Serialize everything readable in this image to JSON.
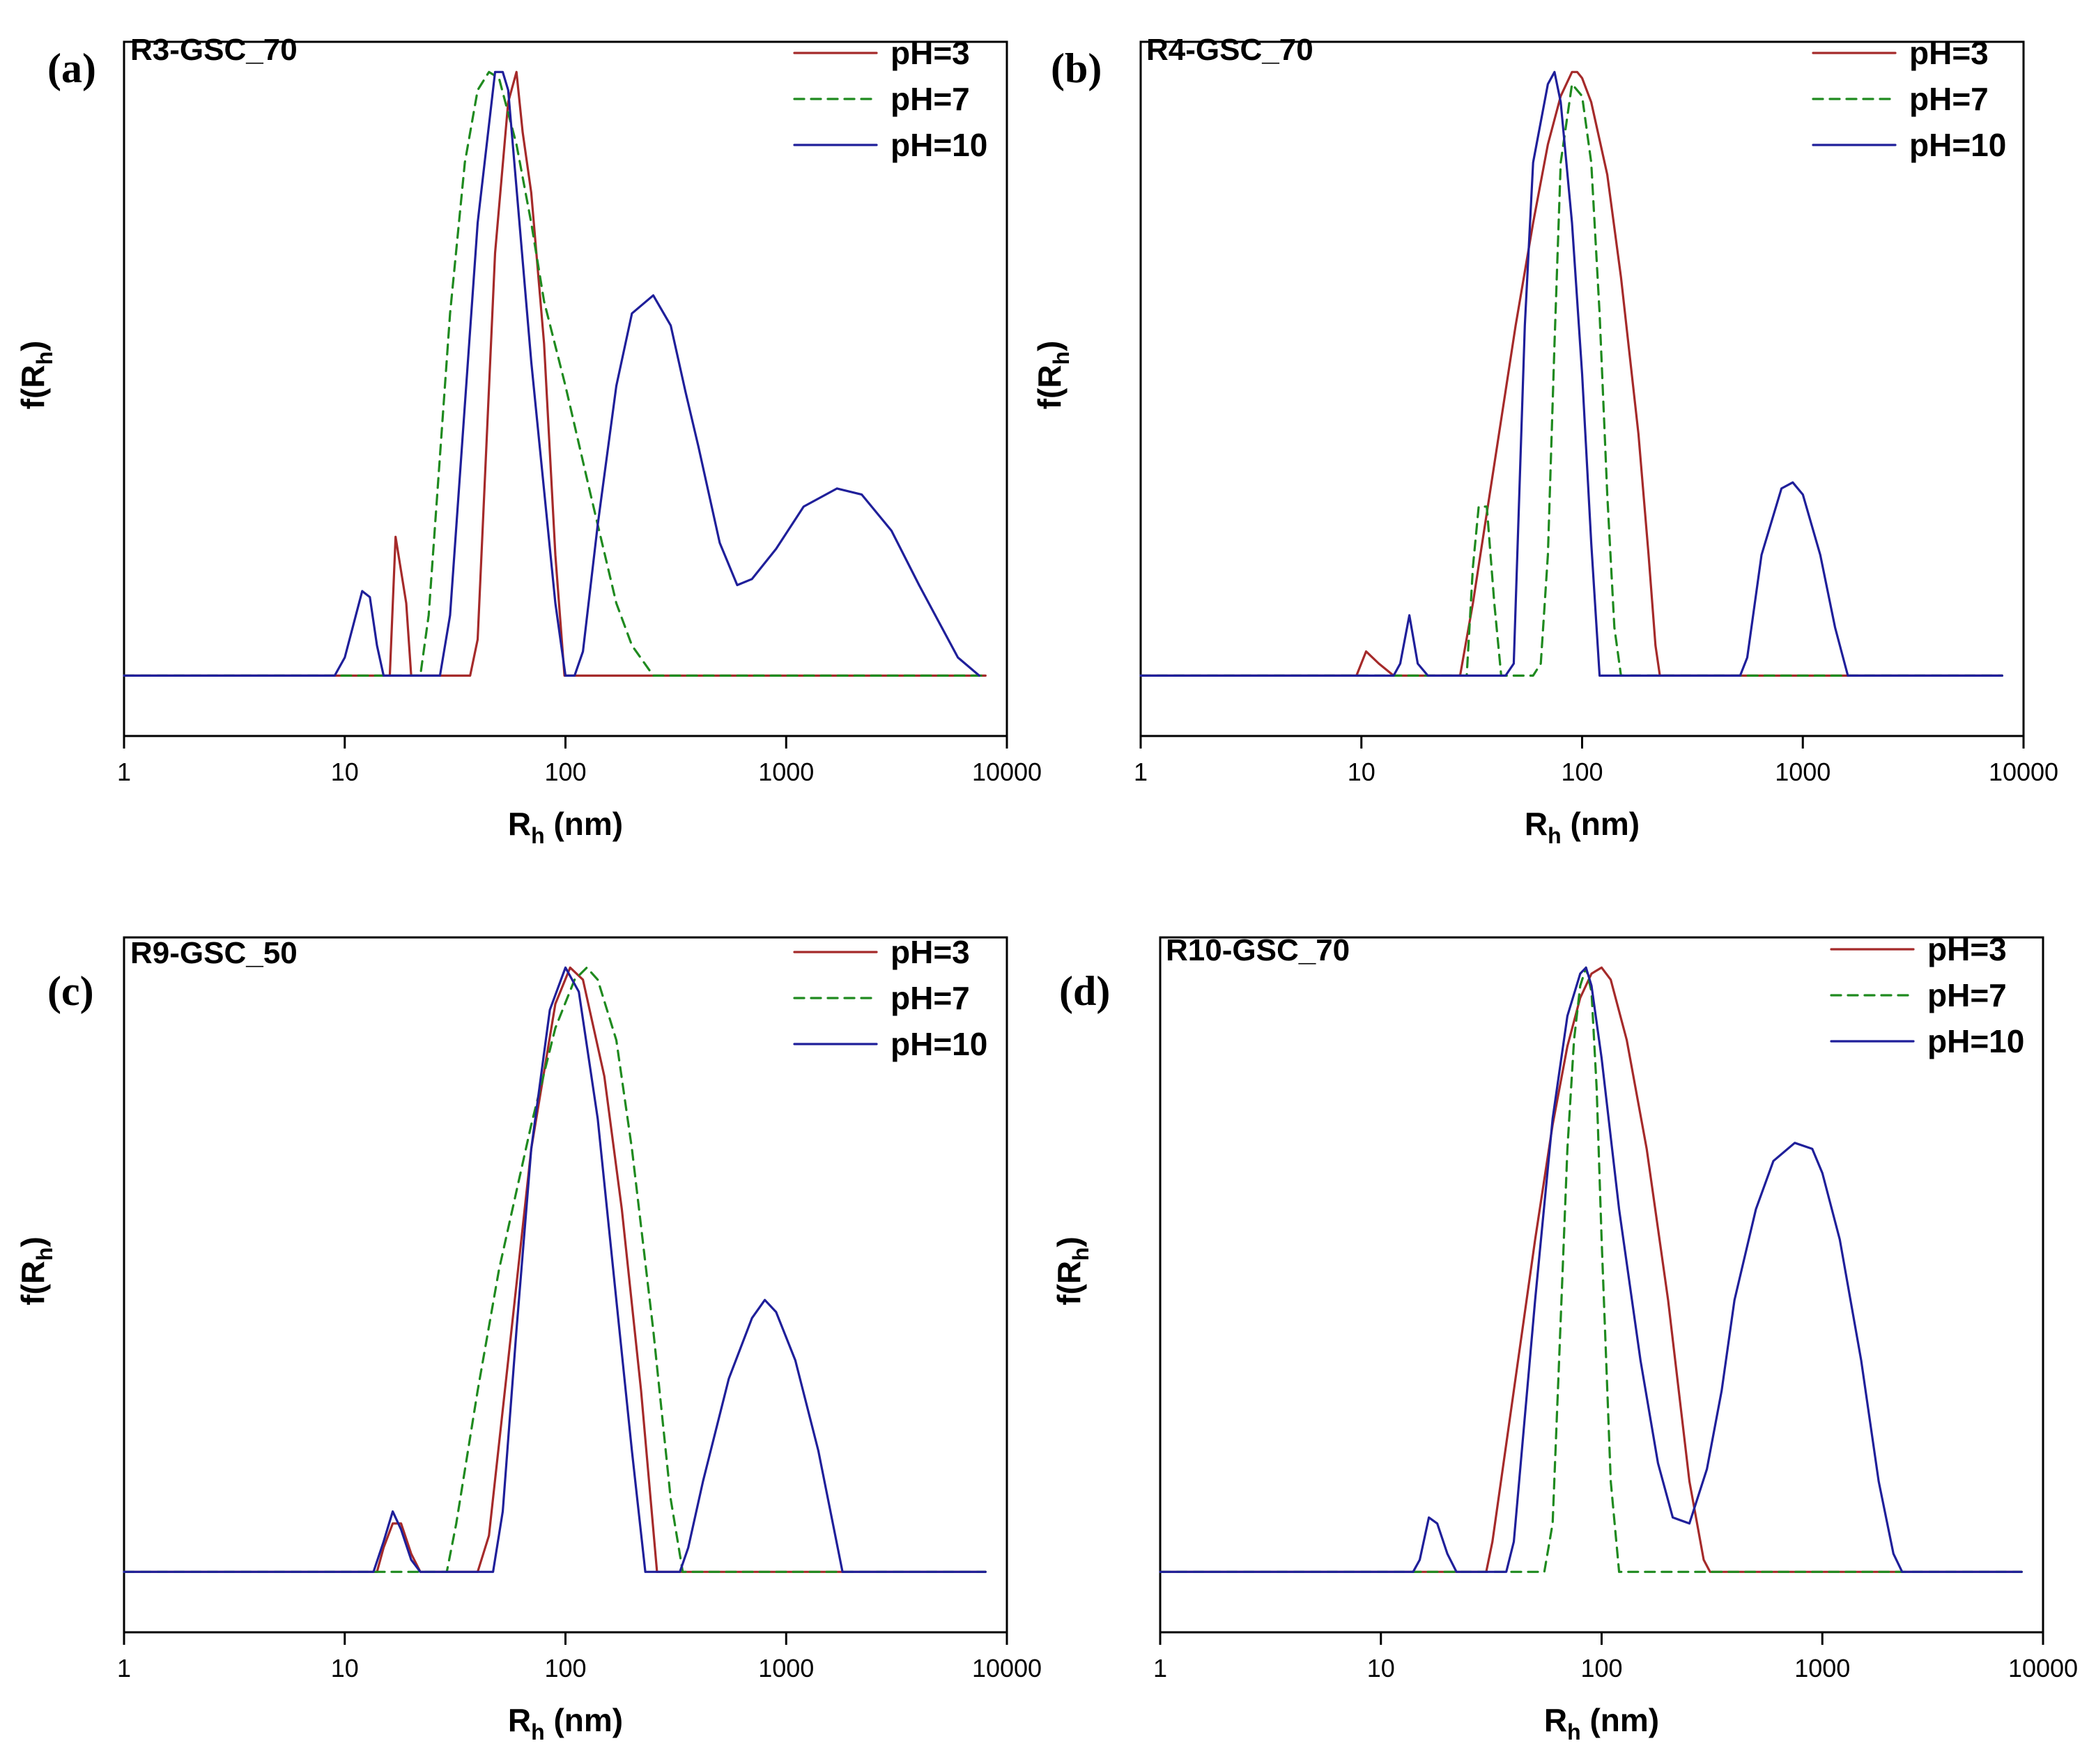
{
  "figure": {
    "colors": {
      "pH=3": "#a52a2a",
      "pH=7": "#1f8a1f",
      "pH=10": "#1f1f9a"
    }
  },
  "chart_data": [
    {
      "type": "line",
      "panel": "(a)",
      "title": "R3-GSC_70",
      "xlabel": "R_h (nm)",
      "ylabel": "f(R_h)",
      "xscale": "log",
      "xlim": [
        1,
        10000
      ],
      "ylim": [
        -0.1,
        1.05
      ],
      "xticks": [
        "1",
        "10",
        "100",
        "1000",
        "10000"
      ],
      "legend": {
        "position": "top-right",
        "entries": [
          "pH=3",
          "pH=7",
          "pH=10"
        ]
      },
      "series": [
        {
          "name": "pH=3",
          "style": "solid",
          "x": [
            1,
            16,
            17,
            19,
            20,
            37,
            40,
            48,
            55,
            60,
            64,
            70,
            80,
            90,
            99,
            105,
            8000
          ],
          "y": [
            0,
            0,
            0.23,
            0.12,
            0,
            0,
            0.06,
            0.7,
            0.95,
            1.0,
            0.9,
            0.8,
            0.55,
            0.2,
            0,
            0,
            0
          ]
        },
        {
          "name": "pH=7",
          "style": "dashed",
          "x": [
            1,
            22,
            24,
            30,
            35,
            40,
            45,
            50,
            60,
            70,
            80,
            100,
            130,
            170,
            200,
            250,
            8000
          ],
          "y": [
            0,
            0,
            0.1,
            0.6,
            0.85,
            0.97,
            1.0,
            0.99,
            0.88,
            0.75,
            0.62,
            0.48,
            0.3,
            0.12,
            0.05,
            0,
            0
          ]
        },
        {
          "name": "pH=10",
          "style": "solid",
          "x": [
            1,
            9,
            10,
            12,
            13,
            14,
            15,
            27,
            30,
            40,
            48,
            52,
            55,
            70,
            90,
            100,
            110,
            120,
            140,
            170,
            200,
            250,
            300,
            350,
            400,
            500,
            600,
            700,
            900,
            1200,
            1700,
            2200,
            3000,
            4000,
            6000,
            7500
          ],
          "y": [
            0,
            0,
            0.03,
            0.14,
            0.13,
            0.05,
            0,
            0,
            0.1,
            0.75,
            1.0,
            1.0,
            0.97,
            0.52,
            0.12,
            0,
            0,
            0.04,
            0.25,
            0.48,
            0.6,
            0.63,
            0.58,
            0.47,
            0.38,
            0.22,
            0.15,
            0.16,
            0.21,
            0.28,
            0.31,
            0.3,
            0.24,
            0.15,
            0.03,
            0
          ]
        }
      ]
    },
    {
      "type": "line",
      "panel": "(b)",
      "title": "R4-GSC_70",
      "xlabel": "R_h (nm)",
      "ylabel": "f(R_h)",
      "xscale": "log",
      "xlim": [
        1,
        10000
      ],
      "ylim": [
        -0.1,
        1.05
      ],
      "xticks": [
        "1",
        "10",
        "100",
        "1000",
        "10000"
      ],
      "legend": {
        "position": "top-right",
        "entries": [
          "pH=3",
          "pH=7",
          "pH=10"
        ]
      },
      "series": [
        {
          "name": "pH=3",
          "style": "solid",
          "x": [
            1,
            9.5,
            10.5,
            12,
            14,
            28,
            32,
            40,
            50,
            60,
            70,
            80,
            90,
            95,
            100,
            110,
            130,
            150,
            180,
            200,
            215,
            225,
            8000
          ],
          "y": [
            0,
            0,
            0.04,
            0.02,
            0,
            0,
            0.12,
            0.35,
            0.58,
            0.75,
            0.88,
            0.96,
            1.0,
            1.0,
            0.99,
            0.95,
            0.83,
            0.66,
            0.4,
            0.2,
            0.05,
            0,
            0
          ]
        },
        {
          "name": "pH=7",
          "style": "dashed",
          "x": [
            1,
            30,
            32,
            34,
            37,
            40,
            43,
            60,
            65,
            70,
            75,
            80,
            90,
            100,
            110,
            120,
            130,
            140,
            150,
            8000
          ],
          "y": [
            0,
            0,
            0.18,
            0.28,
            0.28,
            0.12,
            0,
            0,
            0.02,
            0.2,
            0.55,
            0.85,
            0.98,
            0.96,
            0.85,
            0.6,
            0.3,
            0.08,
            0,
            0
          ]
        },
        {
          "name": "pH=10",
          "style": "solid",
          "x": [
            1,
            14,
            15,
            16.5,
            18,
            20,
            45,
            49,
            55,
            60,
            70,
            75,
            80,
            90,
            100,
            110,
            120,
            520,
            560,
            650,
            800,
            900,
            1000,
            1200,
            1400,
            1600,
            8000
          ],
          "y": [
            0,
            0,
            0.02,
            0.1,
            0.02,
            0,
            0,
            0.02,
            0.58,
            0.85,
            0.98,
            1.0,
            0.95,
            0.75,
            0.5,
            0.22,
            0,
            0,
            0.03,
            0.2,
            0.31,
            0.32,
            0.3,
            0.2,
            0.08,
            0,
            0
          ]
        }
      ]
    },
    {
      "type": "line",
      "panel": "(c)",
      "title": "R9-GSC_50",
      "xlabel": "R_h (nm)",
      "ylabel": "f(R_h)",
      "xscale": "log",
      "xlim": [
        1,
        10000
      ],
      "ylim": [
        -0.1,
        1.05
      ],
      "xticks": [
        "1",
        "10",
        "100",
        "1000",
        "10000"
      ],
      "legend": {
        "position": "top-right",
        "entries": [
          "pH=3",
          "pH=7",
          "pH=10"
        ]
      },
      "series": [
        {
          "name": "pH=3",
          "style": "solid",
          "x": [
            1,
            14,
            15,
            16.5,
            18,
            20,
            22,
            40,
            45,
            55,
            70,
            90,
            105,
            120,
            150,
            180,
            220,
            260,
            8000
          ],
          "y": [
            0,
            0,
            0.04,
            0.08,
            0.08,
            0.03,
            0,
            0,
            0.06,
            0.35,
            0.7,
            0.94,
            1.0,
            0.98,
            0.82,
            0.6,
            0.3,
            0,
            0
          ]
        },
        {
          "name": "pH=7",
          "style": "dashed",
          "x": [
            1,
            29,
            32,
            40,
            50,
            70,
            90,
            110,
            125,
            140,
            170,
            200,
            250,
            300,
            340,
            8000
          ],
          "y": [
            0,
            0,
            0.08,
            0.3,
            0.5,
            0.74,
            0.9,
            0.98,
            1.0,
            0.98,
            0.88,
            0.7,
            0.4,
            0.12,
            0,
            0
          ]
        },
        {
          "name": "pH=10",
          "style": "solid",
          "x": [
            1,
            13.5,
            15,
            16.5,
            18,
            20,
            22,
            47,
            52,
            60,
            70,
            85,
            100,
            115,
            140,
            170,
            200,
            230,
            330,
            360,
            420,
            550,
            700,
            800,
            900,
            1100,
            1400,
            1800,
            8000
          ],
          "y": [
            0,
            0,
            0.05,
            0.1,
            0.07,
            0.02,
            0,
            0,
            0.1,
            0.4,
            0.7,
            0.93,
            1.0,
            0.96,
            0.75,
            0.45,
            0.2,
            0,
            0,
            0.04,
            0.15,
            0.32,
            0.42,
            0.45,
            0.43,
            0.35,
            0.2,
            0,
            0
          ]
        }
      ]
    },
    {
      "type": "line",
      "panel": "(d)",
      "title": "R10-GSC_70",
      "xlabel": "R_h (nm)",
      "ylabel": "f(R_h)",
      "xscale": "log",
      "xlim": [
        1,
        10000
      ],
      "ylim": [
        -0.1,
        1.05
      ],
      "xticks": [
        "1",
        "10",
        "100",
        "1000",
        "10000"
      ],
      "legend": {
        "position": "top-right",
        "entries": [
          "pH=3",
          "pH=7",
          "pH=10"
        ]
      },
      "series": [
        {
          "name": "pH=3",
          "style": "solid",
          "x": [
            1,
            30,
            32,
            40,
            50,
            60,
            70,
            80,
            90,
            100,
            110,
            130,
            160,
            200,
            250,
            290,
            310,
            8000
          ],
          "y": [
            0,
            0,
            0.05,
            0.3,
            0.55,
            0.74,
            0.87,
            0.95,
            0.99,
            1.0,
            0.98,
            0.88,
            0.7,
            0.45,
            0.15,
            0.02,
            0,
            0
          ]
        },
        {
          "name": "pH=7",
          "style": "dashed",
          "x": [
            1,
            55,
            60,
            65,
            70,
            75,
            80,
            85,
            90,
            95,
            100,
            110,
            120,
            8000
          ],
          "y": [
            0,
            0,
            0.08,
            0.4,
            0.7,
            0.88,
            0.97,
            1.0,
            0.96,
            0.8,
            0.55,
            0.15,
            0,
            0
          ]
        },
        {
          "name": "pH=10",
          "style": "solid",
          "x": [
            1,
            14,
            15,
            16.5,
            18,
            20,
            22,
            37,
            40,
            50,
            60,
            70,
            80,
            85,
            90,
            100,
            120,
            150,
            180,
            210,
            250,
            300,
            350,
            400,
            500,
            600,
            750,
            900,
            1000,
            1200,
            1500,
            1800,
            2100,
            2300,
            8000
          ],
          "y": [
            0,
            0,
            0.02,
            0.09,
            0.08,
            0.03,
            0,
            0,
            0.05,
            0.45,
            0.75,
            0.92,
            0.99,
            1.0,
            0.97,
            0.85,
            0.6,
            0.35,
            0.18,
            0.09,
            0.08,
            0.17,
            0.3,
            0.45,
            0.6,
            0.68,
            0.71,
            0.7,
            0.66,
            0.55,
            0.35,
            0.15,
            0.03,
            0,
            0
          ]
        }
      ]
    }
  ]
}
